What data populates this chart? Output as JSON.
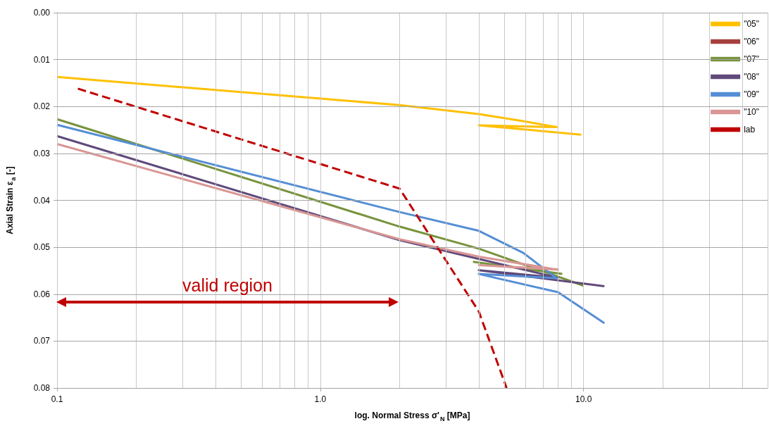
{
  "chart_data": {
    "type": "line",
    "xlabel": "log. Normal Stress σ'$_{N}$ [MPa]",
    "ylabel": "Axial Strain ε$_{a}$ [-]",
    "log": "x",
    "xlim": [
      0.1,
      50
    ],
    "xticks": [
      0.1,
      {
        "value": 1,
        "label": "1.0"
      },
      {
        "value": 10,
        "label": "10.0"
      }
    ],
    "ylim": [
      0.08,
      0
    ],
    "yticks": [
      {
        "value": 0,
        "label": "0.00"
      },
      0.01,
      0.02,
      0.03,
      0.04,
      0.05,
      0.06,
      0.07,
      0.08
    ],
    "grid": true,
    "legend": "top right",
    "marker": "none",
    "series": [
      {
        "name": "\"05\"",
        "color": "#ffc000",
        "x": [
          0.1,
          2,
          4,
          6,
          7.9,
          4,
          9.8
        ],
        "values": [
          0.0137,
          0.0197,
          0.0216,
          0.0232,
          0.0244,
          0.024,
          0.026
        ]
      },
      {
        "name": "\"06\"",
        "color": "#a5403d",
        "values": [
          null
        ]
      },
      {
        "name": "\"07\"",
        "color": "#77933c",
        "x": [
          0.1,
          2,
          4,
          10,
          null,
          3.8,
          8.3
        ],
        "values": [
          0.0227,
          0.0456,
          0.0503,
          0.0582,
          null,
          0.0531,
          0.0557
        ]
      },
      {
        "name": "\"08\"",
        "color": "#604a7b",
        "x": [
          0.1,
          2,
          4,
          8,
          4,
          12
        ],
        "values": [
          0.0263,
          0.0485,
          0.0525,
          0.0565,
          0.0549,
          0.0583
        ]
      },
      {
        "name": "\"09\"",
        "color": "#558ed5",
        "x": [
          0.1,
          2,
          4,
          5.9,
          7.9,
          4,
          8,
          12
        ],
        "values": [
          0.0239,
          0.0425,
          0.0465,
          0.0512,
          0.0566,
          0.0557,
          0.0596,
          0.0662
        ]
      },
      {
        "name": "\"10\"",
        "color": "#d99694",
        "x": [
          0.1,
          2,
          4,
          8,
          4,
          8
        ],
        "values": [
          0.028,
          0.0483,
          0.052,
          0.0548,
          0.0538,
          0.0547
        ]
      },
      {
        "name": "lab",
        "color": "#c00000",
        "line_style": "dashed",
        "x": [
          0.12,
          2,
          4,
          5.1
        ],
        "values": [
          0.0162,
          0.0375,
          0.0637,
          0.08
        ]
      }
    ],
    "annotations": [
      "valid region"
    ]
  }
}
